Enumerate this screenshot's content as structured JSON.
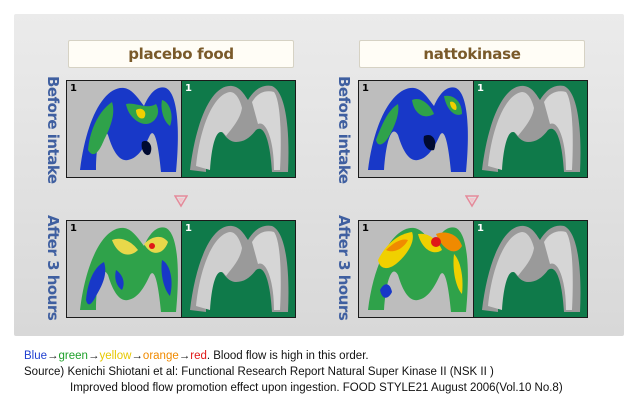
{
  "headers": {
    "left": "placebo food",
    "right": "nattokinase"
  },
  "row_labels": {
    "before": "Before intake",
    "after": "After 3 hours"
  },
  "panel_numbers": [
    "1",
    "1",
    "1",
    "1",
    "1",
    "1",
    "1",
    "1"
  ],
  "legend": {
    "colors": [
      {
        "text": "Blue",
        "color": "#1f3fd0"
      },
      {
        "text": "green",
        "color": "#1ea02a"
      },
      {
        "text": "yellow",
        "color": "#f0d000"
      },
      {
        "text": "orange",
        "color": "#f08a00"
      },
      {
        "text": "red",
        "color": "#e01818"
      }
    ],
    "arrow": "→",
    "trail": ". Blood flow is high in this order."
  },
  "source": {
    "line1": "Source) Kenichi Shiotani et al: Functional Research Report Natural Super Kinase II  (NSK II )",
    "line2": "Improved blood flow promotion effect upon ingestion. FOOD STYLE21 August 2006(Vol.10 No.8)"
  },
  "colors": {
    "header_text": "#7a5a2a",
    "row_label": "#3f5fa0",
    "grey_bg": "#bdbdbd",
    "green_bg": "#0f7a4a",
    "arrow": "#e58a9a"
  }
}
